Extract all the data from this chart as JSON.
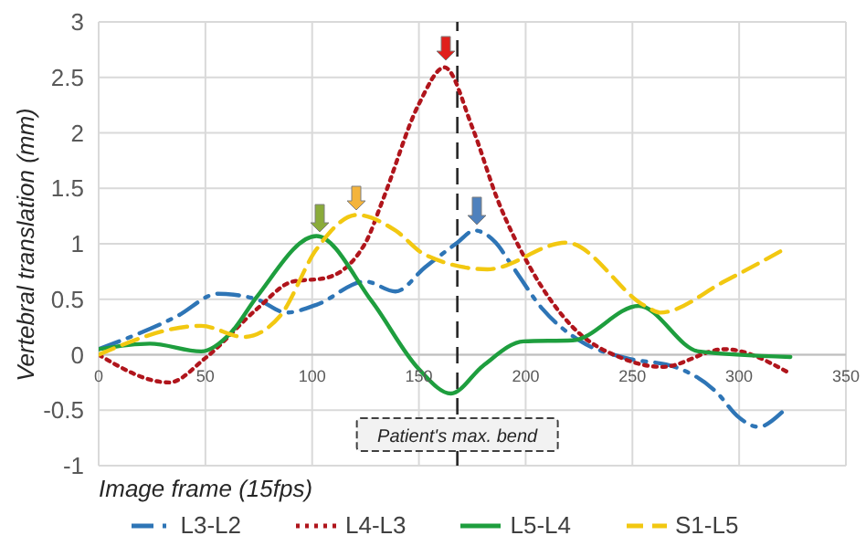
{
  "chart_data": {
    "type": "line",
    "xlabel": "Image frame (15fps)",
    "ylabel": "Vertebral translation (mm)",
    "xlim": [
      0,
      350
    ],
    "xticks": [
      0,
      50,
      100,
      150,
      200,
      250,
      300,
      350
    ],
    "ylim": [
      -1,
      3
    ],
    "yticks": [
      -1,
      -0.5,
      0,
      0.5,
      1,
      1.5,
      2,
      2.5,
      3
    ],
    "grid": true,
    "legend": "bottom",
    "marker": "none",
    "ref_lines": [
      {
        "axis": "x",
        "value": 168,
        "label": "Patient's max. bend",
        "color": "#262626",
        "line_style": "dashed"
      }
    ],
    "series": [
      {
        "name": "L3-L2",
        "color": "#2e75b6",
        "line_style": "dashdot",
        "x": [
          0,
          37,
          56,
          74,
          88,
          102,
          125,
          139,
          153,
          168,
          176,
          186,
          193,
          208,
          225,
          247,
          270,
          290,
          299,
          309,
          320
        ],
        "values": [
          0.05,
          0.35,
          0.55,
          0.5,
          0.38,
          0.45,
          0.66,
          0.57,
          0.79,
          1.01,
          1.12,
          1.01,
          0.82,
          0.41,
          0.13,
          -0.03,
          -0.11,
          -0.35,
          -0.55,
          -0.65,
          -0.52
        ]
      },
      {
        "name": "L4-L3",
        "color": "#b0151c",
        "line_style": "dotted",
        "x": [
          0,
          33,
          50,
          74,
          91,
          106,
          125,
          133,
          150,
          162,
          175,
          187,
          202,
          222,
          245,
          264,
          293,
          323
        ],
        "values": [
          0,
          -0.25,
          -0.03,
          0.41,
          0.66,
          0.69,
          1.01,
          1.39,
          2.26,
          2.59,
          2.05,
          1.39,
          0.79,
          0.25,
          -0.03,
          -0.11,
          0.05,
          -0.16
        ]
      },
      {
        "name": "L5-L4",
        "color": "#1e9e3e",
        "line_style": "solid",
        "x": [
          0,
          24,
          48,
          62,
          74,
          102,
          128,
          150,
          165,
          180,
          199,
          222,
          253,
          281,
          324
        ],
        "values": [
          0.05,
          0.1,
          0.03,
          0.2,
          0.52,
          1.07,
          0.48,
          -0.13,
          -0.35,
          -0.1,
          0.12,
          0.13,
          0.44,
          0.03,
          -0.02
        ]
      },
      {
        "name": "S1-L5",
        "color": "#f2c811",
        "line_style": "dashed",
        "x": [
          0,
          48,
          68,
          85,
          102,
          121,
          139,
          153,
          182,
          219,
          256,
          263,
          293,
          322
        ],
        "values": [
          0,
          0.26,
          0.16,
          0.35,
          0.95,
          1.26,
          1.12,
          0.9,
          0.77,
          1.01,
          0.44,
          0.38,
          0.66,
          0.96
        ]
      }
    ]
  }
}
